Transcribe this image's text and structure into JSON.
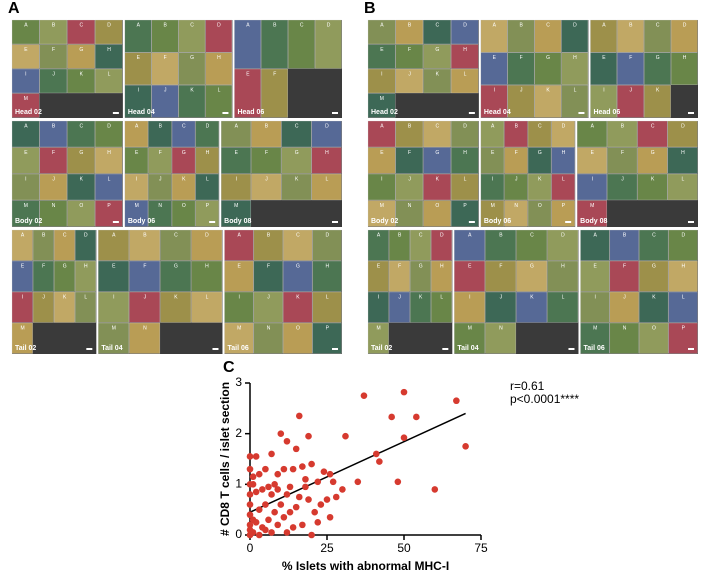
{
  "panels": [
    {
      "label": "A",
      "sections": [
        {
          "name": "Head 02",
          "letters": [
            "A",
            "B",
            "C",
            "D",
            "E",
            "F",
            "G",
            "H",
            "I",
            "J",
            "K",
            "L",
            "M"
          ]
        },
        {
          "name": "Head 04",
          "letters": [
            "A",
            "B",
            "C",
            "D",
            "E",
            "F",
            "G",
            "H",
            "I",
            "J",
            "K",
            "L"
          ]
        },
        {
          "name": "Head 06",
          "letters": [
            "A",
            "B",
            "C",
            "D",
            "E",
            "F"
          ]
        },
        {
          "name": "Body 02",
          "letters": [
            "A",
            "B",
            "C",
            "D",
            "E",
            "F",
            "G",
            "H",
            "I",
            "J",
            "K",
            "L",
            "M",
            "N",
            "O",
            "P"
          ]
        },
        {
          "name": "Body 06",
          "letters": [
            "A",
            "B",
            "C",
            "D",
            "E",
            "F",
            "G",
            "H",
            "I",
            "J",
            "K",
            "L",
            "M",
            "N",
            "O",
            "P"
          ]
        },
        {
          "name": "Body 08",
          "letters": [
            "A",
            "B",
            "C",
            "D",
            "E",
            "F",
            "G",
            "H",
            "I",
            "J",
            "K",
            "L",
            "M"
          ]
        },
        {
          "name": "Tail 02",
          "letters": [
            "A",
            "B",
            "C",
            "D",
            "E",
            "F",
            "G",
            "H",
            "I",
            "J",
            "K",
            "L",
            "M"
          ]
        },
        {
          "name": "Tail 04",
          "letters": [
            "A",
            "B",
            "C",
            "D",
            "E",
            "F",
            "G",
            "H",
            "I",
            "J",
            "K",
            "L",
            "M",
            "N"
          ]
        },
        {
          "name": "Tail 06",
          "letters": [
            "A",
            "B",
            "C",
            "D",
            "E",
            "F",
            "G",
            "H",
            "I",
            "J",
            "K",
            "L",
            "M",
            "N",
            "O",
            "P"
          ]
        }
      ]
    },
    {
      "label": "B",
      "sections": [
        {
          "name": "Head 02",
          "letters": [
            "A",
            "B",
            "C",
            "D",
            "E",
            "F",
            "G",
            "H",
            "I",
            "J",
            "K",
            "L",
            "M"
          ]
        },
        {
          "name": "Head 04",
          "letters": [
            "A",
            "B",
            "C",
            "D",
            "E",
            "F",
            "G",
            "H",
            "I",
            "J",
            "K",
            "L"
          ]
        },
        {
          "name": "Head 06",
          "letters": [
            "A",
            "B",
            "C",
            "D",
            "E",
            "F",
            "G",
            "H",
            "I",
            "J",
            "K"
          ]
        },
        {
          "name": "Body 02",
          "letters": [
            "A",
            "B",
            "C",
            "D",
            "E",
            "F",
            "G",
            "H",
            "I",
            "J",
            "K",
            "L",
            "M",
            "N",
            "O",
            "P"
          ]
        },
        {
          "name": "Body 06",
          "letters": [
            "A",
            "B",
            "C",
            "D",
            "E",
            "F",
            "G",
            "H",
            "I",
            "J",
            "K",
            "L",
            "M",
            "N",
            "O",
            "P"
          ]
        },
        {
          "name": "Body 08",
          "letters": [
            "A",
            "B",
            "C",
            "D",
            "E",
            "F",
            "G",
            "H",
            "I",
            "J",
            "K",
            "L",
            "M"
          ]
        },
        {
          "name": "Tail 02",
          "letters": [
            "A",
            "B",
            "C",
            "D",
            "E",
            "F",
            "G",
            "H",
            "I",
            "J",
            "K",
            "L",
            "M"
          ]
        },
        {
          "name": "Tail 04",
          "letters": [
            "A",
            "B",
            "C",
            "D",
            "E",
            "F",
            "G",
            "H",
            "I",
            "J",
            "K",
            "L",
            "M",
            "N"
          ]
        },
        {
          "name": "Tail 06",
          "letters": [
            "A",
            "B",
            "C",
            "D",
            "E",
            "F",
            "G",
            "H",
            "I",
            "J",
            "K",
            "L",
            "M",
            "N",
            "O",
            "P"
          ]
        }
      ]
    }
  ],
  "chart_data": {
    "type": "scatter",
    "label": "C",
    "x_label": "% Islets with abnormal MHC-I",
    "y_label": "# CD8 T cells / islet section",
    "annotations": [
      "r=0.61",
      "p<0.0001****"
    ],
    "xlim": [
      0,
      75
    ],
    "xticks": [
      0,
      25,
      50,
      75
    ],
    "ylim": [
      0,
      3
    ],
    "yticks": [
      0,
      1,
      2,
      3
    ],
    "x": [
      37,
      50,
      67,
      16,
      46,
      54,
      70,
      50,
      31,
      19,
      10,
      12,
      15,
      0,
      2,
      7,
      41,
      42,
      48,
      60,
      35,
      26,
      24,
      17,
      20,
      14,
      11,
      5,
      9,
      3,
      27,
      22,
      30,
      18,
      13,
      8,
      6,
      4,
      1,
      0,
      2,
      7,
      12,
      16,
      19,
      25,
      23,
      15,
      10,
      5,
      0,
      3,
      8,
      13,
      21,
      26,
      11,
      6,
      1,
      0,
      2,
      9,
      17,
      22,
      4,
      14,
      0,
      1,
      0,
      3,
      20,
      7,
      5,
      12,
      0,
      0,
      0,
      1,
      9,
      18,
      28
    ],
    "series": [
      {
        "color": "#d63a2f",
        "values": [
          2.75,
          2.82,
          2.65,
          2.35,
          2.33,
          2.33,
          1.75,
          1.92,
          1.95,
          1.95,
          2.0,
          1.85,
          1.7,
          1.55,
          1.55,
          1.6,
          1.6,
          1.45,
          1.05,
          0.9,
          1.05,
          1.2,
          1.25,
          1.35,
          1.4,
          1.3,
          1.3,
          1.3,
          1.2,
          1.2,
          1.05,
          1.05,
          0.9,
          0.95,
          0.95,
          1.0,
          0.95,
          0.9,
          1.0,
          1.0,
          0.85,
          0.8,
          0.8,
          0.75,
          0.7,
          0.7,
          0.6,
          0.55,
          0.6,
          0.6,
          0.6,
          0.5,
          0.45,
          0.45,
          0.45,
          0.35,
          0.35,
          0.3,
          0.3,
          0.2,
          0.25,
          0.2,
          0.2,
          0.25,
          0.15,
          0.15,
          0.1,
          0.05,
          0.0,
          0.0,
          0.0,
          0.05,
          0.1,
          0.05,
          0.4,
          0.8,
          1.3,
          1.15,
          0.9,
          1.1,
          0.75
        ]
      }
    ],
    "fit": {
      "color": "#000000",
      "x": [
        0,
        70
      ],
      "y": [
        0.45,
        2.4
      ]
    }
  }
}
